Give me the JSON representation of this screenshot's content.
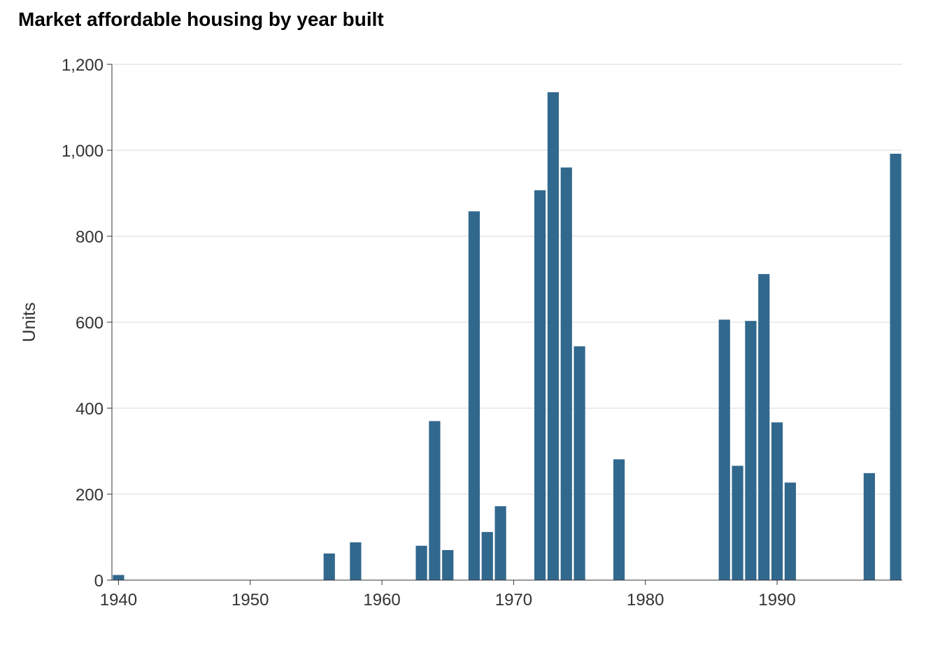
{
  "chart_data": {
    "type": "bar",
    "title": "Market affordable housing by year built",
    "xlabel": "",
    "ylabel": "Units",
    "x": [
      1940,
      1956,
      1958,
      1963,
      1964,
      1965,
      1967,
      1968,
      1969,
      1972,
      1973,
      1974,
      1975,
      1978,
      1986,
      1987,
      1988,
      1989,
      1990,
      1991,
      1997,
      1999
    ],
    "values": [
      12,
      62,
      88,
      80,
      370,
      70,
      858,
      112,
      172,
      907,
      1135,
      960,
      544,
      281,
      606,
      266,
      603,
      712,
      367,
      227,
      249,
      992
    ],
    "xlim": [
      1939.5,
      1999.5
    ],
    "ylim": [
      0,
      1200
    ],
    "x_ticks": [
      1940,
      1950,
      1960,
      1970,
      1980,
      1990
    ],
    "y_ticks": [
      0,
      200,
      400,
      600,
      800,
      1000,
      1200
    ],
    "y_tick_labels": [
      "0",
      "200",
      "400",
      "600",
      "800",
      "1,000",
      "1,200"
    ],
    "grid": "horizontal",
    "bar_color": "#31688e",
    "grid_color": "#d9d9d9"
  }
}
